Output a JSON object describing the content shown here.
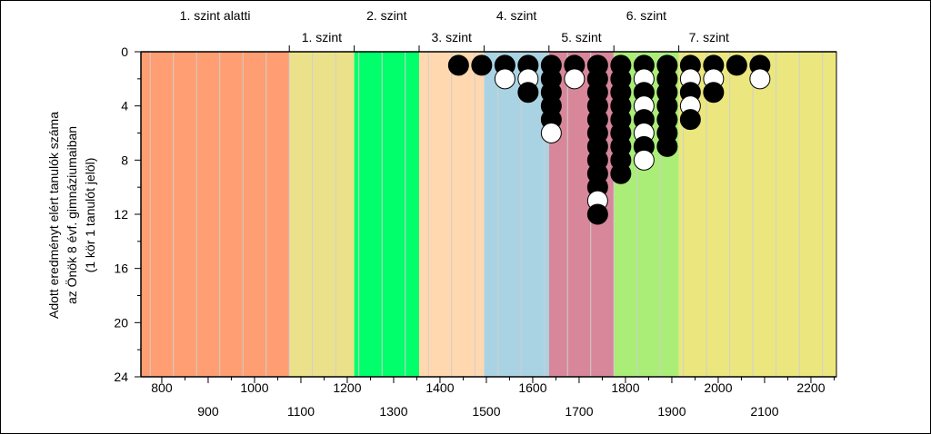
{
  "chart_data": {
    "type": "scatter",
    "title": "",
    "ylabel_lines": [
      "Adott eredményt elért tanulók száma",
      "az Önök 8 évf. gimnáziumaiban",
      "(1 kör 1 tanulót jelöl)"
    ],
    "xlim": [
      755,
      2255
    ],
    "ylim": [
      24,
      0
    ],
    "x_ticks_upper": [
      800,
      1000,
      1200,
      1400,
      1600,
      1800,
      2000,
      2200
    ],
    "x_ticks_lower": [
      900,
      1100,
      1300,
      1500,
      1700,
      1900,
      2100
    ],
    "y_ticks": [
      0,
      4,
      8,
      12,
      16,
      20,
      24
    ],
    "levels": [
      {
        "label": "1. szint alatti",
        "from": 755,
        "to": 1075,
        "color": "#ff9e72",
        "label_row": "top"
      },
      {
        "label": "1. szint",
        "from": 1075,
        "to": 1215,
        "color": "#ebe18a",
        "label_row": "bottom"
      },
      {
        "label": "2. szint",
        "from": 1215,
        "to": 1355,
        "color": "#00ff6a",
        "label_row": "top"
      },
      {
        "label": "3. szint",
        "from": 1355,
        "to": 1495,
        "color": "#ffd8b0",
        "label_row": "bottom"
      },
      {
        "label": "4. szint",
        "from": 1495,
        "to": 1635,
        "color": "#a9d3e3",
        "label_row": "top"
      },
      {
        "label": "5. szint",
        "from": 1635,
        "to": 1775,
        "color": "#d8879a",
        "label_row": "bottom"
      },
      {
        "label": "6. szint",
        "from": 1775,
        "to": 1915,
        "color": "#aaee78",
        "label_row": "top"
      },
      {
        "label": "7. szint",
        "from": 1915,
        "to": 2255,
        "color": "#ebe77e",
        "label_row": "bottom"
      }
    ],
    "stacks": [
      {
        "x": 1440,
        "pattern": "B"
      },
      {
        "x": 1490,
        "pattern": "B"
      },
      {
        "x": 1540,
        "pattern": "BW"
      },
      {
        "x": 1590,
        "pattern": "BWB"
      },
      {
        "x": 1640,
        "pattern": "BBBBBW"
      },
      {
        "x": 1690,
        "pattern": "BW"
      },
      {
        "x": 1740,
        "pattern": "BBBBBBBBBBWB"
      },
      {
        "x": 1790,
        "pattern": "BBBBBBBBB"
      },
      {
        "x": 1840,
        "pattern": "BWBWBWBW"
      },
      {
        "x": 1890,
        "pattern": "BBBBBBB"
      },
      {
        "x": 1940,
        "pattern": "BWBWB"
      },
      {
        "x": 1990,
        "pattern": "BWB"
      },
      {
        "x": 2040,
        "pattern": "B"
      },
      {
        "x": 2090,
        "pattern": "BW"
      }
    ],
    "colors": {
      "filled": "#000000",
      "empty": "#ffffff",
      "gridline": "#cfcfcf"
    }
  }
}
